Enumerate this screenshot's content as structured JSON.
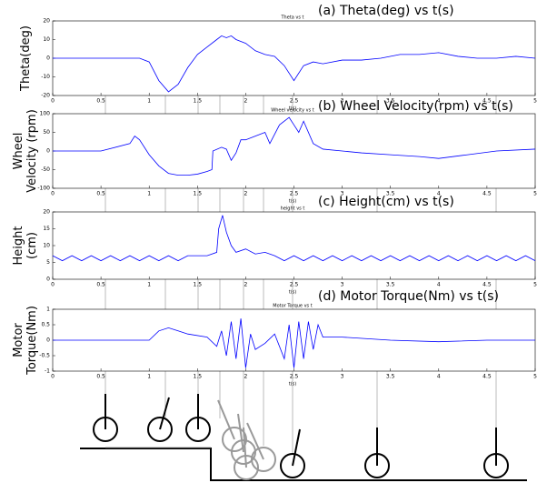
{
  "chart_data": [
    {
      "type": "line",
      "title": "(a) Theta(deg) vs t(s)",
      "subtitle": "Theta vs t",
      "x_label": "t(s)",
      "y_label": [
        "Theta(deg)"
      ],
      "xlim": [
        0,
        5
      ],
      "xticks": [
        0,
        0.5,
        1,
        1.5,
        2,
        2.5,
        3,
        3.5,
        4,
        4.5,
        5
      ],
      "ylim": [
        -20,
        20
      ],
      "yticks": [
        -20,
        -10,
        0,
        10,
        20
      ],
      "grid": false,
      "color": "#0000ff",
      "x": [
        0,
        0.5,
        0.9,
        1.0,
        1.1,
        1.2,
        1.3,
        1.4,
        1.5,
        1.6,
        1.7,
        1.75,
        1.8,
        1.85,
        1.9,
        2.0,
        2.1,
        2.2,
        2.3,
        2.4,
        2.5,
        2.6,
        2.7,
        2.8,
        3.0,
        3.2,
        3.4,
        3.6,
        3.8,
        4.0,
        4.2,
        4.4,
        4.6,
        4.8,
        5.0
      ],
      "values": [
        0,
        0,
        0,
        -2,
        -12,
        -18,
        -14,
        -5,
        2,
        6,
        10,
        12,
        11,
        12,
        10,
        8,
        4,
        2,
        1,
        -4,
        -12,
        -4,
        -2,
        -3,
        -1,
        -1,
        0,
        2,
        2,
        3,
        1,
        0,
        0,
        1,
        0
      ]
    },
    {
      "type": "line",
      "title": "(b) Wheel Velocity(rpm) vs t(s)",
      "subtitle": "Wheel velocity vs t",
      "x_label": "t(s)",
      "y_label": [
        "Wheel",
        "Velocity (rpm)"
      ],
      "xlim": [
        0,
        5
      ],
      "xticks": [
        0,
        0.5,
        1,
        1.5,
        2,
        2.5,
        3,
        3.5,
        4,
        4.5,
        5
      ],
      "ylim": [
        -100,
        100
      ],
      "yticks": [
        -100,
        -50,
        0,
        50,
        100
      ],
      "grid": false,
      "color": "#0000ff",
      "x": [
        0,
        0.5,
        0.8,
        0.85,
        0.9,
        1.0,
        1.1,
        1.2,
        1.3,
        1.4,
        1.5,
        1.6,
        1.65,
        1.66,
        1.75,
        1.8,
        1.85,
        1.9,
        1.95,
        2.0,
        2.1,
        2.2,
        2.25,
        2.35,
        2.45,
        2.5,
        2.55,
        2.6,
        2.7,
        2.8,
        3.0,
        3.2,
        3.5,
        3.8,
        4.0,
        4.3,
        4.6,
        5.0
      ],
      "values": [
        0,
        0,
        20,
        40,
        30,
        -10,
        -40,
        -60,
        -65,
        -65,
        -62,
        -55,
        -50,
        0,
        10,
        5,
        -25,
        -5,
        30,
        30,
        40,
        50,
        20,
        70,
        90,
        70,
        50,
        80,
        20,
        5,
        0,
        -5,
        -10,
        -15,
        -20,
        -10,
        0,
        5
      ]
    },
    {
      "type": "line",
      "title": "(c) Height(cm) vs t(s)",
      "subtitle": "height vs t",
      "x_label": "t(s)",
      "y_label": [
        "Height",
        "(cm)"
      ],
      "xlim": [
        0,
        5
      ],
      "xticks": [
        0,
        0.5,
        1,
        1.5,
        2,
        2.5,
        3,
        3.5,
        4,
        4.5,
        5
      ],
      "ylim": [
        0,
        20
      ],
      "yticks": [
        0,
        5,
        10,
        15,
        20
      ],
      "grid": false,
      "color": "#0000ff",
      "x": [
        0,
        0.1,
        0.2,
        0.3,
        0.4,
        0.5,
        0.6,
        0.7,
        0.8,
        0.9,
        1.0,
        1.1,
        1.2,
        1.3,
        1.4,
        1.5,
        1.6,
        1.7,
        1.72,
        1.76,
        1.8,
        1.85,
        1.9,
        2.0,
        2.1,
        2.2,
        2.3,
        2.4,
        2.5,
        2.6,
        2.7,
        2.8,
        2.9,
        3.0,
        3.1,
        3.2,
        3.3,
        3.4,
        3.5,
        3.6,
        3.7,
        3.8,
        3.9,
        4.0,
        4.1,
        4.2,
        4.3,
        4.4,
        4.5,
        4.6,
        4.7,
        4.8,
        4.9,
        5.0
      ],
      "values": [
        7,
        5.5,
        7,
        5.5,
        7,
        5.5,
        7,
        5.5,
        7,
        5.5,
        7,
        5.5,
        7,
        5.5,
        7,
        7,
        7,
        8,
        15,
        19,
        14,
        10,
        8,
        9,
        7.5,
        8,
        7,
        5.5,
        7,
        5.5,
        7,
        5.5,
        7,
        5.5,
        7,
        5.5,
        7,
        5.5,
        7,
        5.5,
        7,
        5.5,
        7,
        5.5,
        7,
        5.5,
        7,
        5.5,
        7,
        5.5,
        7,
        5.5,
        7,
        5.5
      ]
    },
    {
      "type": "line",
      "title": "(d) Motor Torque(Nm) vs t(s)",
      "subtitle": "Motor Torque vs t",
      "x_label": "t(s)",
      "y_label": [
        "Motor",
        "Torque(Nm)"
      ],
      "xlim": [
        0,
        5
      ],
      "xticks": [
        0,
        0.5,
        1,
        1.5,
        2,
        2.5,
        3,
        3.5,
        4,
        4.5,
        5
      ],
      "ylim": [
        -1,
        1
      ],
      "yticks": [
        -1,
        -0.5,
        0,
        0.5,
        1
      ],
      "grid": false,
      "color": "#0000ff",
      "x": [
        0,
        0.5,
        1.0,
        1.1,
        1.2,
        1.3,
        1.4,
        1.6,
        1.7,
        1.75,
        1.8,
        1.85,
        1.9,
        1.95,
        2.0,
        2.05,
        2.1,
        2.2,
        2.3,
        2.4,
        2.45,
        2.5,
        2.55,
        2.6,
        2.65,
        2.7,
        2.75,
        2.8,
        3.0,
        3.5,
        4.0,
        4.5,
        5.0
      ],
      "values": [
        0,
        0,
        0,
        0.3,
        0.4,
        0.3,
        0.2,
        0.1,
        -0.2,
        0.3,
        -0.5,
        0.6,
        -0.6,
        0.7,
        -0.9,
        0.2,
        -0.3,
        -0.1,
        0.2,
        -0.6,
        0.5,
        -0.9,
        0.6,
        -0.6,
        0.6,
        -0.3,
        0.5,
        0.1,
        0.1,
        0,
        -0.05,
        0,
        0
      ]
    }
  ]
}
